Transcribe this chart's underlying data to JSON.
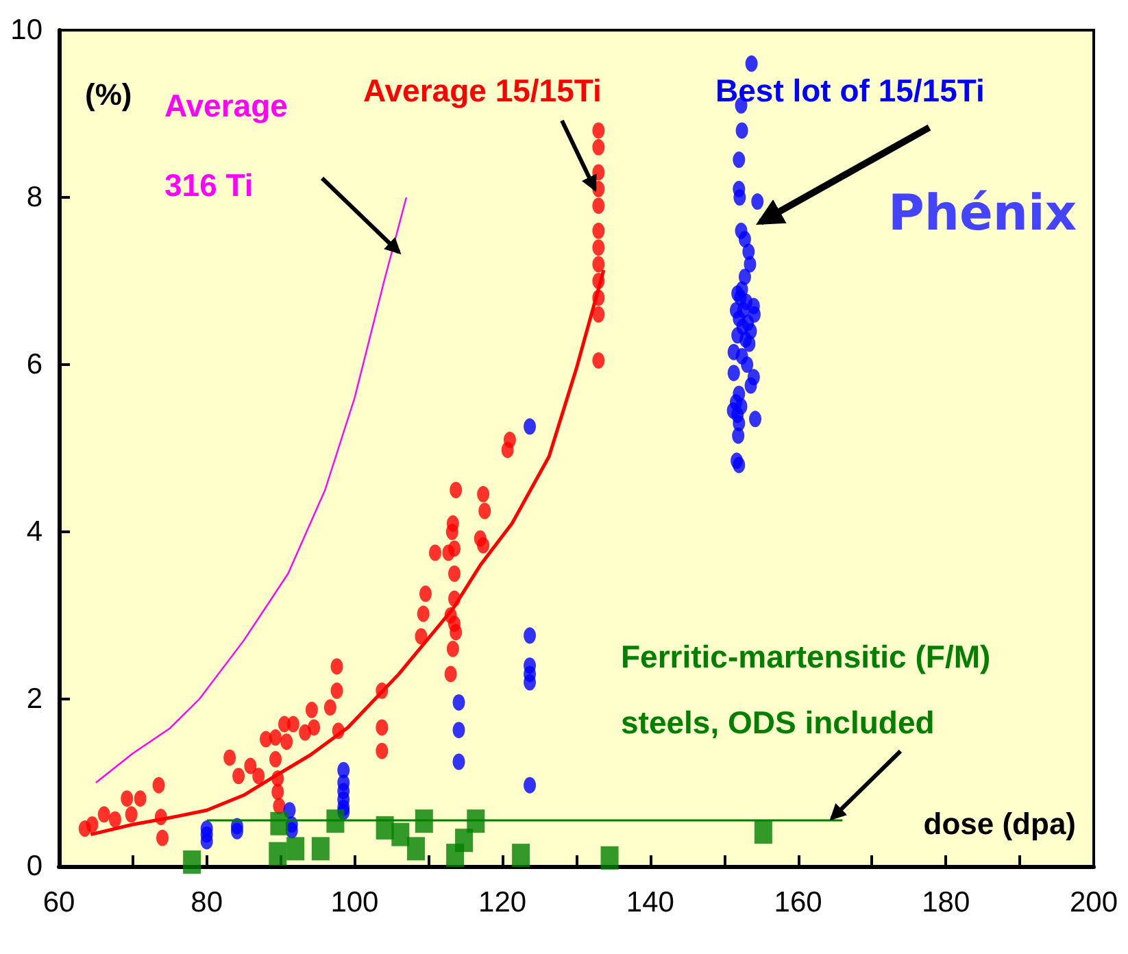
{
  "chart_data": {
    "type": "scatter",
    "xlabel": "dose (dpa)",
    "ylabel": "(%)",
    "xlim": [
      60,
      200
    ],
    "ylim": [
      0,
      10
    ],
    "xticks": [
      60,
      {
        "value": 70,
        "label": null
      },
      80,
      {
        "value": 90,
        "label": null
      },
      100,
      {
        "value": 110,
        "label": null
      },
      120,
      {
        "value": 130,
        "label": null
      },
      140,
      {
        "value": 150,
        "label": null
      },
      160,
      {
        "value": 170,
        "label": null
      },
      180,
      {
        "value": 190,
        "label": null
      },
      200
    ],
    "yticks": [
      0,
      2,
      4,
      6,
      8,
      10
    ],
    "grid": false,
    "legend": false,
    "annotations": [
      "Phénix"
    ],
    "series": [
      {
        "name": "Average 316 Ti",
        "type": "line",
        "color": "#ff00ff",
        "marker": "none",
        "x": [
          65,
          70,
          75,
          79,
          85,
          91,
          96,
          100,
          104,
          107
        ],
        "values": [
          1.0,
          1.35,
          1.65,
          2.0,
          2.7,
          3.5,
          4.5,
          5.6,
          7.0,
          8.0
        ]
      },
      {
        "name": "Average 15/15Ti",
        "type": "line",
        "color": "#ff0000",
        "marker": "none",
        "x": [
          64.3,
          70,
          75,
          80,
          85,
          88.7,
          94,
          99.1,
          106,
          113.3,
          117,
          121.3,
          126.3,
          130,
          133.7
        ],
        "values": [
          0.38,
          0.5,
          0.58,
          0.67,
          0.85,
          1.05,
          1.33,
          1.66,
          2.3,
          3.08,
          3.6,
          4.1,
          4.9,
          5.95,
          7.13
        ]
      },
      {
        "type": "scatter",
        "color": "#ff0000",
        "marker": "circle",
        "x": [
          63.5,
          64.5,
          66.1,
          67.6,
          69.2,
          69.8,
          71.0,
          73.5,
          73.8,
          74,
          83.1,
          84.3,
          85.9,
          87,
          88,
          89.3,
          89.3,
          89.6,
          89.6,
          89.8,
          90.8,
          90.5,
          91.7,
          93.3,
          94.2,
          94.5,
          96.7,
          97.6,
          97.6,
          97.8,
          103.7,
          103.7,
          103.7,
          109,
          109.3,
          109.6,
          110.9,
          112.7,
          113,
          113.3,
          113.5,
          113.5,
          113.5,
          113.5,
          113.3,
          113.7,
          113.2,
          113,
          113.7,
          117.4,
          117.6,
          117,
          117.4,
          120.7,
          121,
          133,
          133,
          133,
          133,
          133,
          133,
          133,
          133,
          133,
          133,
          133,
          133
        ],
        "values": [
          0.45,
          0.5,
          0.62,
          0.56,
          0.81,
          0.62,
          0.81,
          0.97,
          0.59,
          0.34,
          1.3,
          1.08,
          1.2,
          1.08,
          1.52,
          1.54,
          1.28,
          1.05,
          0.89,
          0.72,
          1.49,
          1.7,
          1.7,
          1.6,
          1.87,
          1.66,
          1.9,
          2.1,
          2.39,
          1.62,
          2.1,
          1.66,
          1.38,
          2.75,
          3.02,
          3.26,
          3.75,
          3.75,
          2.3,
          2.6,
          2.9,
          3.2,
          3.5,
          3.8,
          4.1,
          4.5,
          4.0,
          3.0,
          2.8,
          4.45,
          4.25,
          3.92,
          3.84,
          4.98,
          5.1,
          8.8,
          8.6,
          8.3,
          8.1,
          7.9,
          7.6,
          7.4,
          7.2,
          7.0,
          6.8,
          6.6,
          6.05
        ]
      },
      {
        "name": "Best lot of 15/15Ti",
        "type": "scatter",
        "color": "#0000ff",
        "marker": "circle",
        "x": [
          80,
          80,
          80,
          84.1,
          84.1,
          91.2,
          91.5,
          91.5,
          98.5,
          98.5,
          98.5,
          98.5,
          98.5,
          98.5,
          114.1,
          114.1,
          114.1,
          123.7,
          123.7,
          123.7,
          123.7,
          123.7,
          123.7,
          153.7,
          152.3,
          152.4,
          152,
          152,
          152.1,
          154.5,
          152.3,
          152.8,
          153.3,
          153.5,
          152.8,
          152.4,
          151.8,
          152.2,
          153,
          154,
          151.6,
          152.6,
          154.1,
          152,
          153.2,
          152.5,
          153.6,
          151.8,
          152.9,
          153.4,
          151.3,
          152.4,
          153.1,
          151.3,
          154,
          153.6,
          152,
          151.6,
          152.3,
          151.2,
          151.8,
          154.2,
          152,
          151.9,
          151.7,
          152
        ],
        "values": [
          0.45,
          0.38,
          0.3,
          0.48,
          0.42,
          0.67,
          0.5,
          0.43,
          1.15,
          1.0,
          0.9,
          0.8,
          0.7,
          0.65,
          1.96,
          1.63,
          1.25,
          5.26,
          2.76,
          2.4,
          2.3,
          2.2,
          0.97,
          9.6,
          9.1,
          8.8,
          8.45,
          8.1,
          8.0,
          7.95,
          7.6,
          7.5,
          7.35,
          7.2,
          7.05,
          6.9,
          6.85,
          6.8,
          6.75,
          6.7,
          6.65,
          6.65,
          6.6,
          6.55,
          6.5,
          6.45,
          6.4,
          6.35,
          6.3,
          6.25,
          6.15,
          6.1,
          6.0,
          5.9,
          5.85,
          5.75,
          5.65,
          5.55,
          5.5,
          5.45,
          5.4,
          5.35,
          5.3,
          5.15,
          4.85,
          4.8
        ]
      },
      {
        "name": "Ferritic-martensitic (F/M) steels, ODS included",
        "type": "scatter",
        "color": "#007f00",
        "marker": "square",
        "x": [
          78,
          89.6,
          89.8,
          92,
          95.4,
          97.4,
          104.1,
          106.2,
          108.3,
          109.4,
          113.6,
          114.8,
          116.4,
          122.5,
          134.5,
          155.3
        ],
        "values": [
          0.05,
          0.15,
          0.51,
          0.21,
          0.21,
          0.54,
          0.46,
          0.38,
          0.21,
          0.54,
          0.13,
          0.31,
          0.54,
          0.13,
          0.1,
          0.41
        ]
      },
      {
        "type": "line",
        "color": "#007f00",
        "marker": "none",
        "x": [
          80,
          166
        ],
        "values": [
          0.55,
          0.55
        ]
      }
    ]
  }
}
